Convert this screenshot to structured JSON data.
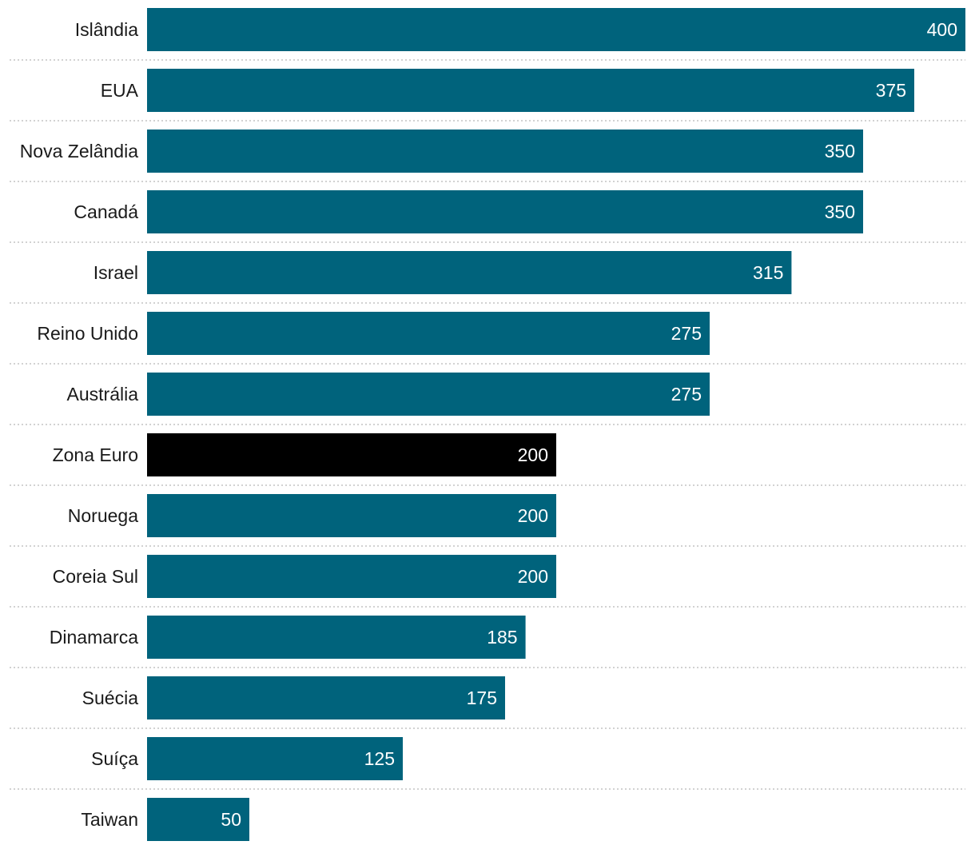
{
  "chart_data": {
    "type": "bar",
    "orientation": "horizontal",
    "title": "",
    "xlabel": "",
    "ylabel": "",
    "categories": [
      "Islândia",
      "EUA",
      "Nova Zelândia",
      "Canadá",
      "Israel",
      "Reino Unido",
      "Austrália",
      "Zona Euro",
      "Noruega",
      "Coreia Sul",
      "Dinamarca",
      "Suécia",
      "Suíça",
      "Taiwan"
    ],
    "values": [
      400,
      375,
      350,
      350,
      315,
      275,
      275,
      200,
      200,
      200,
      185,
      175,
      125,
      50
    ],
    "value_labels": [
      "400",
      "375",
      "350",
      "350",
      "315",
      "275",
      "275",
      "200",
      "200",
      "200",
      "185",
      "175",
      "125",
      "50"
    ],
    "highlight_category": "Zona Euro",
    "xlim": [
      0,
      400
    ],
    "grid": false,
    "row_separators": "dotted",
    "colors": {
      "bar": "#00637c",
      "highlight": "#000000",
      "value_label": "#ffffff",
      "category_label": "#1a1a1a",
      "separator": "#c4c4c4"
    }
  }
}
